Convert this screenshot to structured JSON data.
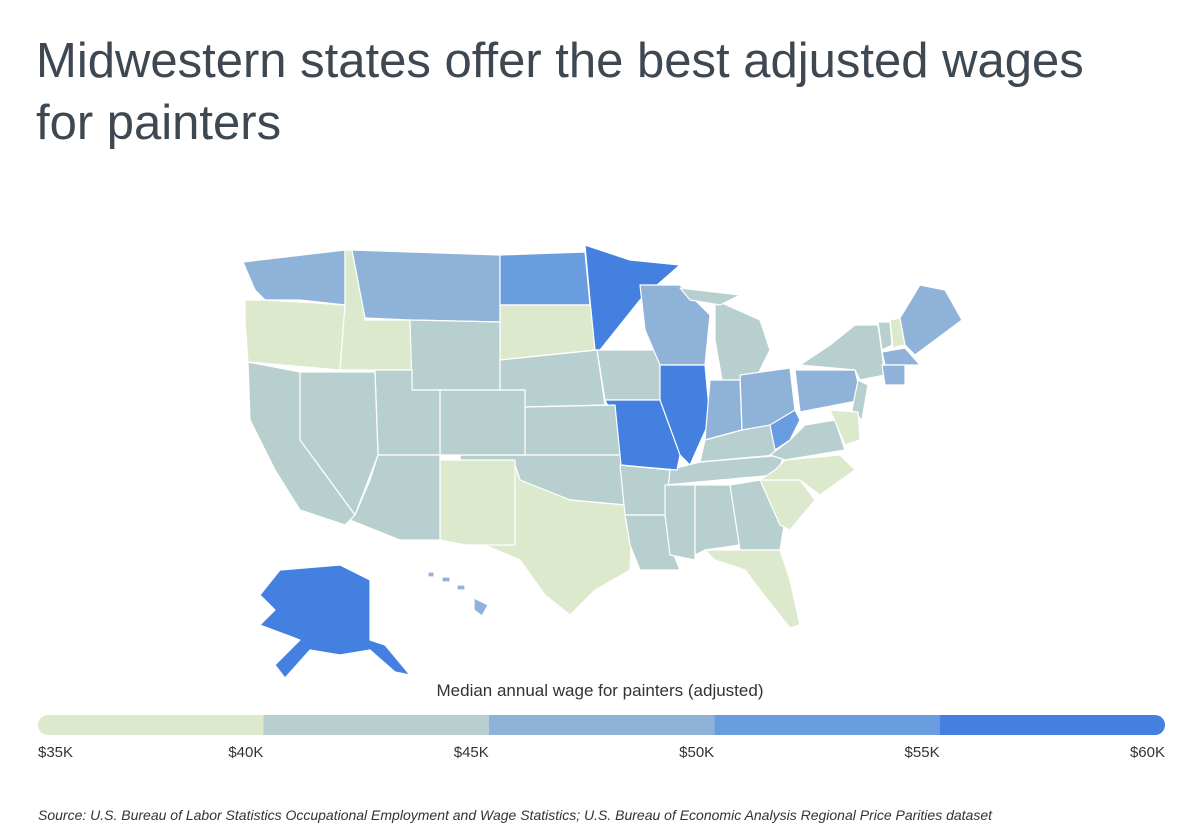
{
  "title": "Midwestern states offer the best adjusted wages for painters",
  "legend": {
    "title": "Median annual wage for painters (adjusted)",
    "range": [
      35000,
      60000
    ],
    "colors": [
      "#dde9cc",
      "#b8cfcf",
      "#8fb3d8",
      "#6a9ddf",
      "#4480e0"
    ],
    "ticks": [
      {
        "value": 35000,
        "label": "$35K"
      },
      {
        "value": 40000,
        "label": "$40K"
      },
      {
        "value": 45000,
        "label": "$45K"
      },
      {
        "value": 50000,
        "label": "$50K"
      },
      {
        "value": 55000,
        "label": "$55K"
      },
      {
        "value": 60000,
        "label": "$60K"
      }
    ]
  },
  "source": "Source:  U.S. Bureau of Labor Statistics Occupational Employment and Wage Statistics; U.S. Bureau of Economic Analysis Regional Price Parities dataset"
}
